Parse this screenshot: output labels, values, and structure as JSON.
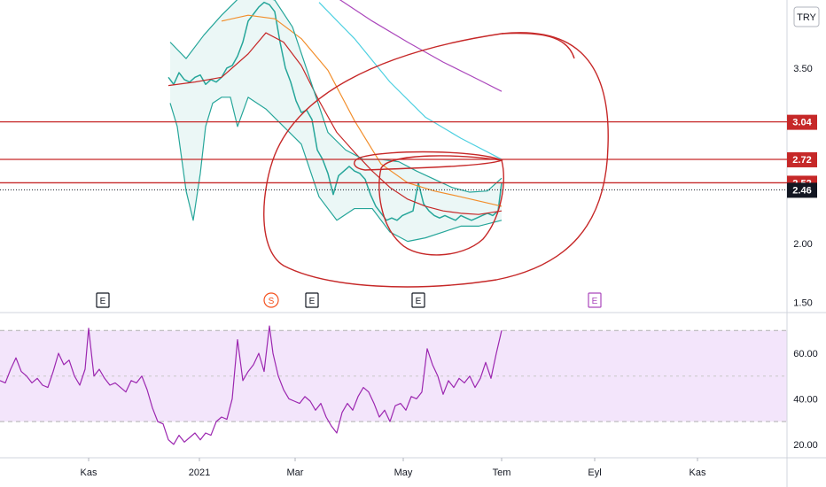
{
  "currency_badge": "TRY",
  "chart_data": [
    {
      "type": "line",
      "panel": "price",
      "ylim": [
        1.42,
        4.08
      ],
      "xlim": [
        0,
        932
      ],
      "y_ticks": [
        "1.50",
        "2.00",
        "3.50"
      ],
      "price_levels": [
        {
          "value": 3.04,
          "label": "3.04",
          "color": "#c62828"
        },
        {
          "value": 2.72,
          "label": "2.72",
          "color": "#c62828"
        },
        {
          "value": 2.52,
          "label": "2.52",
          "color": "#c62828"
        },
        {
          "value": 2.46,
          "label": "2.46",
          "color": "#131722"
        }
      ],
      "event_markers": [
        {
          "label": "E",
          "x": 116,
          "color": "#131722"
        },
        {
          "label": "S",
          "x": 306,
          "color": "#f4511e"
        },
        {
          "label": "E",
          "x": 352,
          "color": "#131722"
        },
        {
          "label": "E",
          "x": 472,
          "color": "#131722"
        },
        {
          "label": "E",
          "x": 671,
          "color": "#ab47bc"
        }
      ],
      "series": [
        {
          "name": "",
          "color": "#26a69a",
          "x": [
            190,
            196,
            202,
            208,
            214,
            220,
            226,
            232,
            238,
            244,
            250,
            256,
            262,
            268,
            274,
            280,
            286,
            292,
            298,
            304,
            310,
            316,
            322,
            328,
            334,
            340,
            346,
            352,
            358,
            364,
            370,
            376,
            382,
            388,
            394,
            400,
            406,
            412,
            418,
            424,
            430,
            436,
            442,
            448,
            454,
            460,
            466,
            472,
            478,
            484,
            490,
            496,
            502,
            508,
            514,
            520,
            526,
            532,
            538,
            544,
            550,
            556,
            562,
            566
          ],
          "y": [
            3.42,
            3.36,
            3.46,
            3.4,
            3.38,
            3.42,
            3.44,
            3.36,
            3.4,
            3.38,
            3.42,
            3.5,
            3.52,
            3.6,
            3.72,
            3.9,
            3.96,
            4.02,
            4.06,
            4.04,
            3.98,
            3.72,
            3.5,
            3.38,
            3.22,
            3.12,
            3.14,
            3.06,
            2.8,
            2.72,
            2.6,
            2.42,
            2.58,
            2.62,
            2.66,
            2.62,
            2.6,
            2.55,
            2.42,
            2.32,
            2.26,
            2.2,
            2.22,
            2.2,
            2.24,
            2.26,
            2.28,
            2.52,
            2.34,
            2.28,
            2.24,
            2.22,
            2.24,
            2.22,
            2.2,
            2.24,
            2.22,
            2.2,
            2.22,
            2.24,
            2.26,
            2.24,
            2.28,
            2.52
          ]
        },
        {
          "name": "",
          "color": "#c62828",
          "x": [
            190,
            220,
            250,
            280,
            300,
            320,
            340,
            360,
            380,
            400,
            420,
            440,
            460,
            480,
            500,
            520,
            540,
            566
          ],
          "y": [
            3.35,
            3.38,
            3.42,
            3.62,
            3.8,
            3.72,
            3.52,
            3.22,
            2.95,
            2.78,
            2.62,
            2.48,
            2.38,
            2.32,
            2.28,
            2.26,
            2.25,
            2.28
          ]
        },
        {
          "name": "",
          "color": "#f28e2b",
          "x": [
            250,
            280,
            310,
            340,
            370,
            400,
            430,
            460,
            490,
            520,
            566
          ],
          "y": [
            3.9,
            3.95,
            3.92,
            3.75,
            3.48,
            3.05,
            2.68,
            2.52,
            2.45,
            2.4,
            2.32
          ]
        },
        {
          "name": "",
          "color": "#4dd0e1",
          "x": [
            360,
            400,
            440,
            480,
            520,
            566
          ],
          "y": [
            4.06,
            3.75,
            3.38,
            3.08,
            2.9,
            2.72
          ]
        },
        {
          "name": "",
          "color": "#ab47bc",
          "x": [
            380,
            420,
            460,
            500,
            540,
            566
          ],
          "y": [
            4.1,
            3.9,
            3.72,
            3.55,
            3.4,
            3.3
          ]
        },
        {
          "name": "",
          "color": "#26a69a",
          "x": [
            192,
            210,
            230,
            250,
            270,
            290,
            310,
            330,
            350,
            370,
            390,
            410,
            430,
            450,
            470,
            490,
            510,
            530,
            550,
            566
          ],
          "y": [
            3.72,
            3.58,
            3.78,
            3.95,
            4.1,
            4.12,
            4.08,
            3.85,
            3.4,
            2.95,
            2.8,
            2.72,
            2.72,
            2.7,
            2.62,
            2.55,
            2.48,
            2.44,
            2.45,
            2.56
          ]
        },
        {
          "name": "",
          "color": "#26a69a",
          "x": [
            192,
            200,
            210,
            218,
            226,
            232,
            240,
            250,
            260,
            268,
            280,
            300,
            320,
            340,
            360,
            380,
            400,
            420,
            440,
            460,
            480,
            500,
            520,
            540,
            566
          ],
          "y": [
            3.2,
            3.0,
            2.45,
            2.2,
            2.6,
            3.0,
            3.2,
            3.25,
            3.25,
            3.0,
            3.25,
            3.15,
            3.0,
            2.85,
            2.4,
            2.2,
            2.3,
            2.3,
            2.1,
            2.02,
            2.05,
            2.1,
            2.15,
            2.15,
            2.2
          ]
        }
      ],
      "annotations": "hand-drawn red ellipses circling the recent consolidation range"
    },
    {
      "type": "line",
      "panel": "oscillator",
      "ylim": [
        14.5,
        77.5
      ],
      "y_ticks": [
        "20.00",
        "40.00",
        "60.00"
      ],
      "band": [
        30,
        70
      ],
      "midline": 50,
      "x_ticks": [
        {
          "label": "Kas",
          "x": 100
        },
        {
          "label": "2021",
          "x": 225
        },
        {
          "label": "Mar",
          "x": 333
        },
        {
          "label": "May",
          "x": 455
        },
        {
          "label": "Tem",
          "x": 566
        },
        {
          "label": "Eyl",
          "x": 671
        },
        {
          "label": "Kas",
          "x": 787
        }
      ],
      "series": [
        {
          "name": "",
          "color": "#9c27b0",
          "x": [
            0,
            6,
            12,
            18,
            24,
            30,
            36,
            42,
            48,
            54,
            60,
            66,
            72,
            78,
            84,
            90,
            96,
            100,
            106,
            112,
            118,
            124,
            130,
            136,
            142,
            148,
            154,
            160,
            166,
            172,
            178,
            184,
            190,
            196,
            202,
            208,
            214,
            220,
            226,
            232,
            238,
            244,
            250,
            256,
            262,
            268,
            274,
            280,
            286,
            292,
            298,
            304,
            308,
            314,
            320,
            326,
            332,
            338,
            344,
            350,
            356,
            362,
            368,
            374,
            380,
            386,
            392,
            398,
            404,
            410,
            416,
            422,
            428,
            434,
            440,
            446,
            452,
            458,
            464,
            470,
            476,
            482,
            488,
            494,
            500,
            506,
            512,
            518,
            524,
            530,
            536,
            542,
            548,
            554,
            560,
            566
          ],
          "y": [
            48,
            47,
            53,
            58,
            52,
            50,
            47,
            49,
            46,
            45,
            52,
            60,
            55,
            57,
            50,
            46,
            53,
            71,
            50,
            53,
            49,
            46,
            47,
            45,
            43,
            48,
            47,
            50,
            44,
            36,
            30,
            29,
            22,
            20,
            24,
            21,
            23,
            25,
            22,
            25,
            24,
            30,
            32,
            31,
            40,
            66,
            48,
            52,
            55,
            60,
            52,
            72,
            60,
            50,
            44,
            40,
            39,
            38,
            41,
            39,
            35,
            38,
            32,
            28,
            25,
            34,
            38,
            35,
            41,
            45,
            43,
            38,
            32,
            35,
            30,
            37,
            38,
            35,
            41,
            40,
            43,
            62,
            55,
            50,
            42,
            48,
            45,
            49,
            47,
            50,
            45,
            49,
            56,
            49,
            60,
            70
          ]
        }
      ]
    }
  ]
}
